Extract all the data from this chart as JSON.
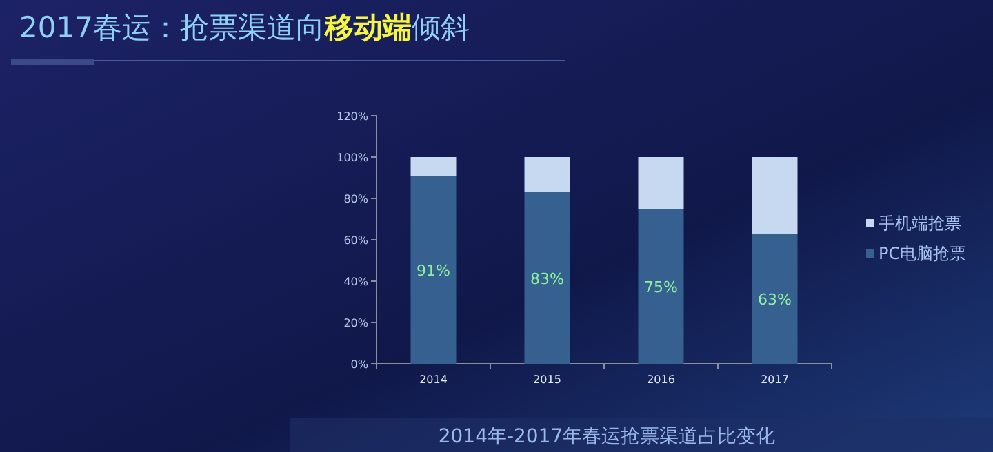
{
  "chart_data": {
    "type": "bar",
    "title": "2017春运：抢票渠道向**移动端**倾斜",
    "annotations": [
      "2014年-2017年春运抢票渠道占比变化"
    ],
    "categories": [
      "2014",
      "2015",
      "2016",
      "2017"
    ],
    "stacked": true,
    "legend": "right",
    "ylim": [
      0,
      120
    ],
    "yticks": [
      {
        "value": 0,
        "label": "0%"
      },
      {
        "value": 20,
        "label": "20%"
      },
      {
        "value": 40,
        "label": "40%"
      },
      {
        "value": 60,
        "label": "60%"
      },
      {
        "value": 80,
        "label": "80%"
      },
      {
        "value": 100,
        "label": "100%"
      },
      {
        "value": 120,
        "label": "120%"
      }
    ],
    "series": [
      {
        "name": "PC电脑抢票",
        "color": "#36608f",
        "values": [
          91,
          83,
          75,
          63
        ],
        "value_labels": [
          "91%",
          "83%",
          "75%",
          "63%"
        ]
      },
      {
        "name": "手机端抢票",
        "color": "#c6d9f1",
        "values": [
          9,
          17,
          25,
          37
        ]
      }
    ]
  }
}
